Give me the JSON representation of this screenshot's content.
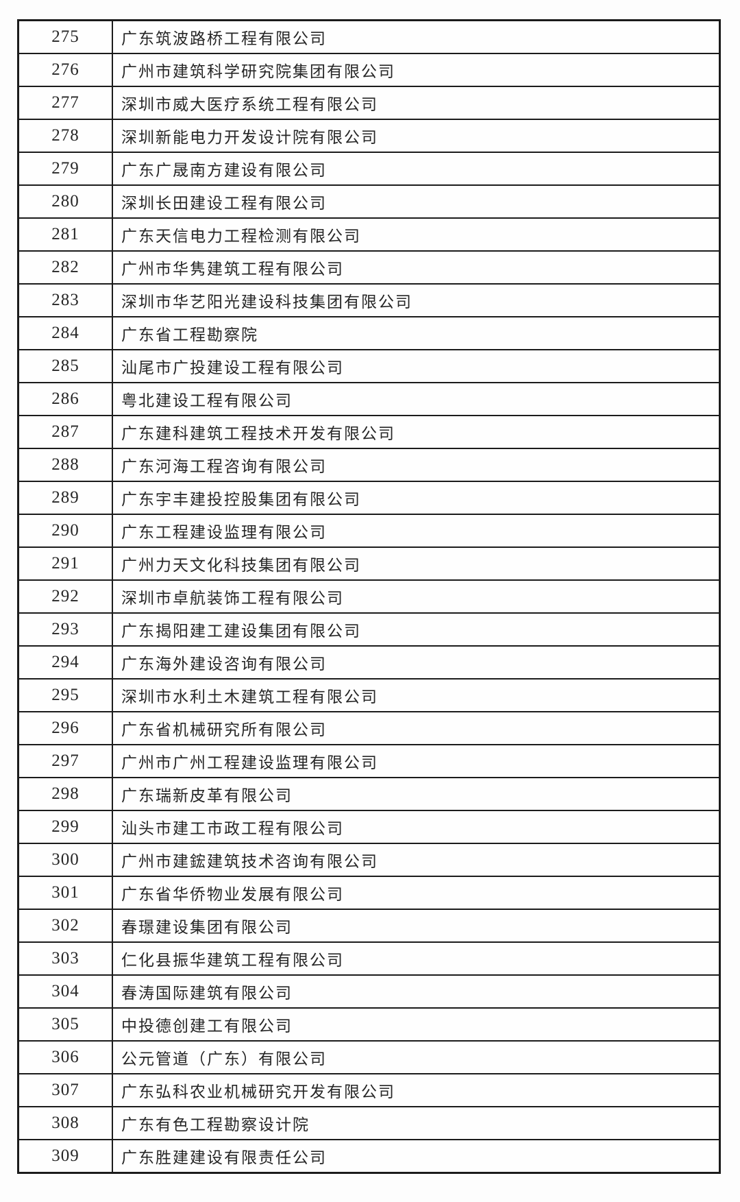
{
  "table": {
    "rows": [
      {
        "no": "275",
        "name": "广东筑波路桥工程有限公司"
      },
      {
        "no": "276",
        "name": "广州市建筑科学研究院集团有限公司"
      },
      {
        "no": "277",
        "name": "深圳市威大医疗系统工程有限公司"
      },
      {
        "no": "278",
        "name": "深圳新能电力开发设计院有限公司"
      },
      {
        "no": "279",
        "name": "广东广晟南方建设有限公司"
      },
      {
        "no": "280",
        "name": "深圳长田建设工程有限公司"
      },
      {
        "no": "281",
        "name": "广东天信电力工程检测有限公司"
      },
      {
        "no": "282",
        "name": "广州市华隽建筑工程有限公司"
      },
      {
        "no": "283",
        "name": "深圳市华艺阳光建设科技集团有限公司"
      },
      {
        "no": "284",
        "name": "广东省工程勘察院"
      },
      {
        "no": "285",
        "name": "汕尾市广投建设工程有限公司"
      },
      {
        "no": "286",
        "name": "粤北建设工程有限公司"
      },
      {
        "no": "287",
        "name": "广东建科建筑工程技术开发有限公司"
      },
      {
        "no": "288",
        "name": "广东河海工程咨询有限公司"
      },
      {
        "no": "289",
        "name": "广东宇丰建投控股集团有限公司"
      },
      {
        "no": "290",
        "name": "广东工程建设监理有限公司"
      },
      {
        "no": "291",
        "name": "广州力天文化科技集团有限公司"
      },
      {
        "no": "292",
        "name": "深圳市卓航装饰工程有限公司"
      },
      {
        "no": "293",
        "name": "广东揭阳建工建设集团有限公司"
      },
      {
        "no": "294",
        "name": "广东海外建设咨询有限公司"
      },
      {
        "no": "295",
        "name": "深圳市水利土木建筑工程有限公司"
      },
      {
        "no": "296",
        "name": "广东省机械研究所有限公司"
      },
      {
        "no": "297",
        "name": "广州市广州工程建设监理有限公司"
      },
      {
        "no": "298",
        "name": "广东瑞新皮革有限公司"
      },
      {
        "no": "299",
        "name": "汕头市建工市政工程有限公司"
      },
      {
        "no": "300",
        "name": "广州市建鋐建筑技术咨询有限公司"
      },
      {
        "no": "301",
        "name": "广东省华侨物业发展有限公司"
      },
      {
        "no": "302",
        "name": "春璟建设集团有限公司"
      },
      {
        "no": "303",
        "name": "仁化县振华建筑工程有限公司"
      },
      {
        "no": "304",
        "name": "春涛国际建筑有限公司"
      },
      {
        "no": "305",
        "name": "中投德创建工有限公司"
      },
      {
        "no": "306",
        "name": "公元管道（广东）有限公司"
      },
      {
        "no": "307",
        "name": "广东弘科农业机械研究开发有限公司"
      },
      {
        "no": "308",
        "name": "广东有色工程勘察设计院"
      },
      {
        "no": "309",
        "name": "广东胜建建设有限责任公司"
      }
    ]
  }
}
